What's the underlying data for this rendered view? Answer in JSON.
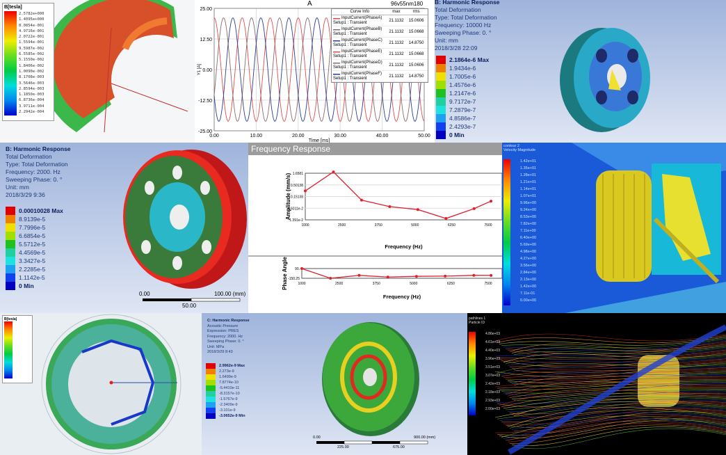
{
  "panel_magnetic": {
    "legend_title": "B[tesla]",
    "legend_values": [
      "2.5782e+000",
      "1.4095e+000",
      "8.0854e-001",
      "4.9716e-001",
      "2.0722e-001",
      "1.5594e-001",
      "9.5987e-002",
      "6.5585e-002",
      "5.1550e-002",
      "1.8406e-002",
      "1.0090e-002",
      "8.1708e-003",
      "3.5646e-003",
      "2.8594e-003",
      "1.1850e-003",
      "6.8736e-004",
      "3.9711e-004",
      "2.2942e-004"
    ]
  },
  "panel_current": {
    "title": "A",
    "design_name": "96v55nm180",
    "legend_headers": [
      "Curve Info",
      "max",
      "rms"
    ],
    "xlabel": "Time [ms]",
    "ylabel": "Y1 [A]"
  },
  "panel_harmonic_10k": {
    "lines": [
      "B: Harmonic Response",
      "Total Deformation",
      "Type: Total Deformation",
      "Frequency: 10000 Hz",
      "Sweeping Phase: 0. °",
      "Unit: mm",
      "2018/3/28 22:09"
    ],
    "legend_values": [
      "2.1864e-6 Max",
      "1.9434e-6",
      "1.7005e-6",
      "1.4576e-6",
      "1.2147e-6",
      "9.7172e-7",
      "7.2879e-7",
      "4.8586e-7",
      "2.4293e-7",
      "0 Min"
    ]
  },
  "panel_harmonic_2k": {
    "lines": [
      "B: Harmonic Response",
      "Total Deformation",
      "Type: Total Deformation",
      "Frequency: 2000. Hz",
      "Sweeping Phase: 0. °",
      "Unit: mm",
      "2018/3/29 9:36"
    ],
    "legend_values": [
      "0.00010028 Max",
      "8.9139e-5",
      "7.7996e-5",
      "6.6854e-5",
      "5.5712e-5",
      "4.4569e-5",
      "3.3427e-5",
      "2.2285e-5",
      "1.1142e-5",
      "0 Min"
    ],
    "scale": [
      "0.00",
      "50.00",
      "100.00 (mm)"
    ]
  },
  "panel_freq": {
    "title": "Frequency Response"
  },
  "panel_cfd": {
    "legend_title": [
      "contour 2",
      "Velocity Magnitude"
    ],
    "legend_values": [
      "1.42e+01",
      "1.35e+01",
      "1.28e+01",
      "1.21e+01",
      "1.14e+01",
      "1.07e+01",
      "9.96e+00",
      "9.24e+00",
      "8.53e+00",
      "7.82e+00",
      "7.11e+00",
      "6.40e+00",
      "5.69e+00",
      "4.98e+00",
      "4.27e+00",
      "3.56e+00",
      "2.84e+00",
      "2.13e+00",
      "1.42e+00",
      "7.11e-01",
      "0.00e+00"
    ]
  },
  "panel_ring": {
    "legend_title": "B[tesla]"
  },
  "panel_acoustic": {
    "lines": [
      "C: Harmonic Response",
      "Acoustic Pressure",
      "Expression: PRES",
      "Frequency: 2000. Hz",
      "Sweeping Phase: 0. °",
      "Unit: MPa",
      "2018/3/29 8:43"
    ],
    "legend_values": [
      "2.9962e-9 Max",
      "2.273e-9",
      "1.6499e-9",
      "7.8774e-10",
      "-5.4410e-11",
      "-8.3157e-10",
      "-1.5767e-9",
      "-2.3409e-9",
      "-3.101e-9",
      "-3.0652e-9 Min"
    ],
    "scale": [
      "0.00",
      "225.00",
      "675.00",
      "900.00 (mm)"
    ]
  },
  "panel_streamlines": {
    "legend_title": [
      "pathlines 1",
      "Particle ID"
    ],
    "legend_values": [
      "4.86e+03",
      "4.61e+03",
      "4.40e+03",
      "3.96e+03",
      "3.51e+03",
      "3.07e+03",
      "2.42e+03",
      "2.18e+03",
      "2.93e+03",
      "2.00e+03"
    ]
  },
  "colors": {
    "red": "#e8222a",
    "blue": "#2b3a9a",
    "ansys_bg": "#b4c4e4"
  },
  "chart_data": [
    {
      "type": "line",
      "title": "A",
      "xlabel": "Time [ms]",
      "ylabel": "Y1 [A]",
      "xlim": [
        0,
        50
      ],
      "ylim": [
        -25,
        25
      ],
      "xticks": [
        "0.00",
        "10.00",
        "20.00",
        "30.00",
        "40.00",
        "50.00"
      ],
      "yticks": [
        "25.00",
        "12.50",
        "0.00",
        "-12.50",
        "-25.00"
      ],
      "grid": true,
      "legend": "top-right",
      "period_ms": 6.67,
      "series": [
        {
          "name": "InputCurrent(PhaseA)",
          "sub": "Setup1 : Transient",
          "max": "21.1132",
          "rms": "15.0606",
          "color": "#e84a4a",
          "phase_deg": 0
        },
        {
          "name": "InputCurrent(PhaseB)",
          "sub": "Setup1 : Transient",
          "max": "21.1132",
          "rms": "15.0668",
          "color": "#8a6a6a",
          "phase_deg": 120
        },
        {
          "name": "InputCurrent(PhaseC)",
          "sub": "Setup1 : Transient",
          "max": "21.1132",
          "rms": "14.8750",
          "color": "#2b3a9a",
          "phase_deg": 240
        },
        {
          "name": "InputCurrent(PhaseE)",
          "sub": "Setup1 : Transient",
          "max": "21.1132",
          "rms": "15.0668",
          "color": "#e84a4a",
          "phase_deg": 0
        },
        {
          "name": "InputCurrent(PhaseD)",
          "sub": "Setup1 : Transient",
          "max": "21.1132",
          "rms": "15.0606",
          "color": "#8a6a6a",
          "phase_deg": 120
        },
        {
          "name": "InputCurrent(PhaseF)",
          "sub": "Setup1 : Transient",
          "max": "21.1132",
          "rms": "14.8750",
          "color": "#2b3a9a",
          "phase_deg": 240
        }
      ]
    },
    {
      "type": "line",
      "xlabel": "Frequency (Hz)",
      "ylabel": "Amplitude (mm/s)",
      "scale": "log",
      "yticks": [
        "1.6581",
        "0.50138",
        "0.15138",
        "4.6011e-2",
        "1.391e-2"
      ],
      "xticks": [
        "1000",
        "2500",
        "3750",
        "5000",
        "6250",
        "7500"
      ],
      "xlim": [
        1000,
        7500
      ],
      "ylim": [
        0.01391,
        1.6581
      ],
      "x": [
        1000,
        2000,
        3000,
        4000,
        5000,
        6000,
        7000,
        7600
      ],
      "values": [
        0.27,
        1.9,
        0.105,
        0.054,
        0.04,
        0.016,
        0.044,
        0.095
      ],
      "color": "#e0202a"
    },
    {
      "type": "line",
      "xlabel": "Frequency (Hz)",
      "ylabel": "Phase Angle",
      "yticks": [
        "90.",
        "-150.25"
      ],
      "xticks": [
        "1000",
        "2500",
        "3750",
        "5000",
        "6250",
        "7500"
      ],
      "xlim": [
        1000,
        7500
      ],
      "ylim": [
        -150.25,
        90
      ],
      "x": [
        1000,
        2000,
        3000,
        4000,
        5000,
        6000,
        7000,
        7600
      ],
      "values": [
        90,
        -150,
        -78,
        -120,
        -102,
        -96,
        -78,
        -80
      ],
      "color": "#e0202a"
    }
  ]
}
